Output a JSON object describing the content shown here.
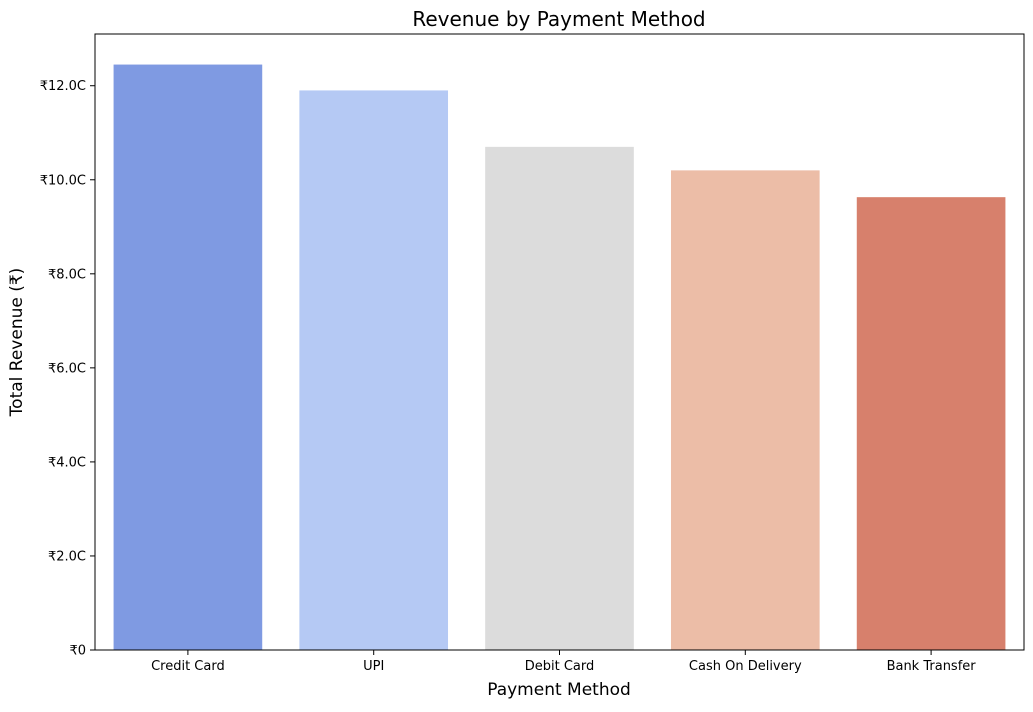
{
  "chart_data": {
    "type": "bar",
    "title": "Revenue by Payment Method",
    "xlabel": "Payment Method",
    "ylabel": "Total Revenue (₹)",
    "categories": [
      "Credit Card",
      "UPI",
      "Debit Card",
      "Cash On Delivery",
      "Bank Transfer"
    ],
    "values": [
      12.45,
      11.9,
      10.7,
      10.2,
      9.63
    ],
    "value_unit": "C",
    "colors": [
      "#7f9ae2",
      "#b5c9f4",
      "#dcdcdc",
      "#ecbda7",
      "#d7806c"
    ],
    "ylim": [
      0,
      13.1
    ],
    "yticks": [
      0,
      2,
      4,
      6,
      8,
      10,
      12
    ],
    "ytick_labels": [
      "₹0",
      "₹2.0C",
      "₹4.0C",
      "₹6.0C",
      "₹8.0C",
      "₹10.0C",
      "₹12.0C"
    ],
    "grid": false,
    "legend": false
  }
}
